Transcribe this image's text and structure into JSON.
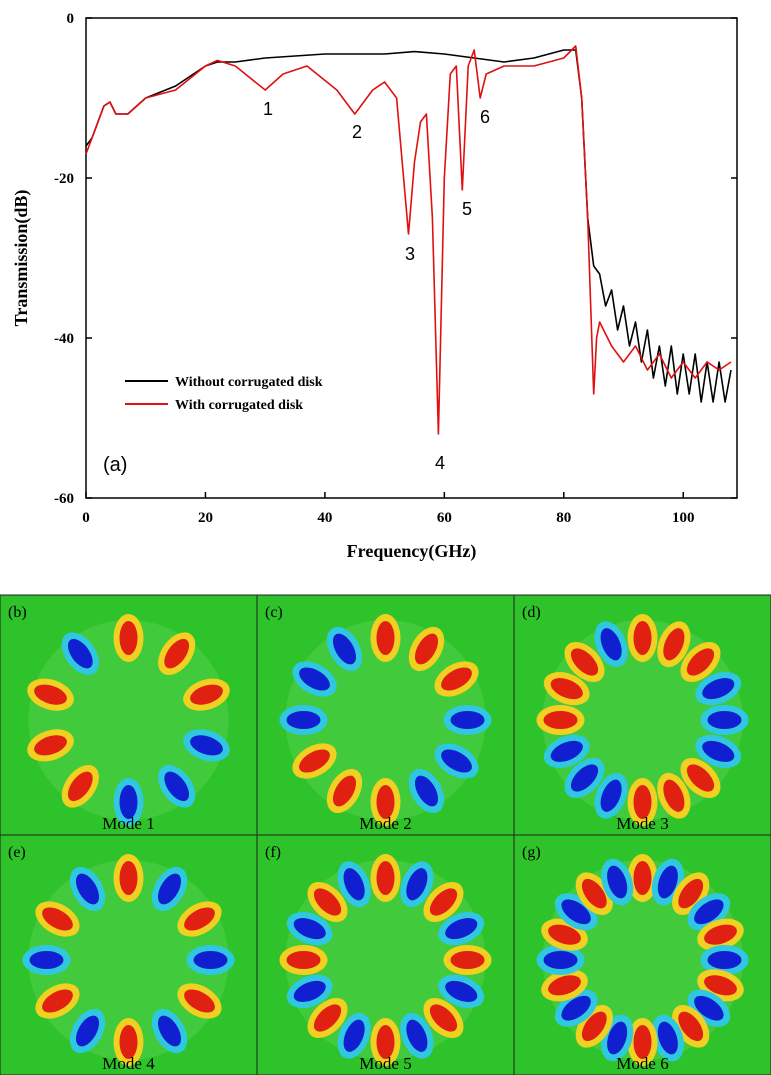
{
  "chart_data": {
    "type": "line",
    "xlabel": "Frequency(GHz)",
    "ylabel": "Transmission(dB)",
    "xlim": [
      0,
      109
    ],
    "ylim": [
      -60,
      0
    ],
    "xticks": [
      0,
      20,
      40,
      60,
      80,
      100
    ],
    "yticks": [
      -60,
      -40,
      -20,
      0
    ],
    "panel_label": "(a)",
    "annotations": [
      "1",
      "2",
      "3",
      "4",
      "5",
      "6"
    ],
    "legend": "lower left",
    "series": [
      {
        "name": "Without corrugated disk",
        "color": "#000000",
        "x": [
          0,
          1,
          3,
          4,
          5,
          7,
          10,
          15,
          20,
          22,
          25,
          30,
          40,
          50,
          55,
          60,
          65,
          70,
          75,
          80,
          82,
          83,
          84,
          85,
          86,
          87,
          88,
          89,
          90,
          91,
          92,
          93,
          94,
          95,
          96,
          97,
          98,
          99,
          100,
          101,
          102,
          103,
          104,
          105,
          106,
          107,
          108
        ],
        "values": [
          -16,
          -15,
          -11,
          -10.5,
          -12,
          -12,
          -10,
          -8.5,
          -6,
          -5.5,
          -5.5,
          -5,
          -4.5,
          -4.5,
          -4.2,
          -4.5,
          -5,
          -5.5,
          -5,
          -4,
          -4,
          -10,
          -25,
          -31,
          -32,
          -36,
          -34,
          -39,
          -36,
          -41,
          -38,
          -43,
          -39,
          -45,
          -41,
          -46,
          -41,
          -47,
          -42,
          -47,
          -42,
          -48,
          -43,
          -48,
          -43,
          -48,
          -44
        ]
      },
      {
        "name": "With corrugated disk",
        "color": "#e01010",
        "x": [
          0,
          1,
          3,
          4,
          5,
          7,
          10,
          15,
          20,
          22,
          25,
          30,
          33,
          37,
          42,
          45,
          48,
          50,
          52,
          54,
          55,
          56,
          57,
          58,
          59,
          60,
          61,
          62,
          63,
          64,
          65,
          66,
          67,
          70,
          75,
          80,
          82,
          83,
          84,
          85,
          85.5,
          86,
          88,
          90,
          92,
          94,
          96,
          98,
          100,
          102,
          104,
          106,
          108
        ],
        "values": [
          -17,
          -15,
          -11,
          -10.5,
          -12,
          -12,
          -10,
          -9,
          -6,
          -5.3,
          -6,
          -9,
          -7,
          -6,
          -9,
          -12,
          -9,
          -8,
          -10,
          -27,
          -18,
          -13,
          -12,
          -25,
          -52,
          -20,
          -7,
          -6,
          -21.5,
          -6,
          -4,
          -10,
          -7,
          -6,
          -6,
          -5,
          -3.5,
          -10,
          -25,
          -47,
          -40,
          -38,
          -41,
          -43,
          -41,
          -44,
          -42,
          -45,
          -43,
          -45,
          -43,
          -44,
          -43
        ]
      }
    ]
  },
  "panels": [
    {
      "label": "(b)",
      "caption": "Mode 1"
    },
    {
      "label": "(c)",
      "caption": "Mode 2"
    },
    {
      "label": "(d)",
      "caption": "Mode 3"
    },
    {
      "label": "(e)",
      "caption": "Mode 4"
    },
    {
      "label": "(f)",
      "caption": "Mode 5"
    },
    {
      "label": "(g)",
      "caption": "Mode 6"
    }
  ]
}
